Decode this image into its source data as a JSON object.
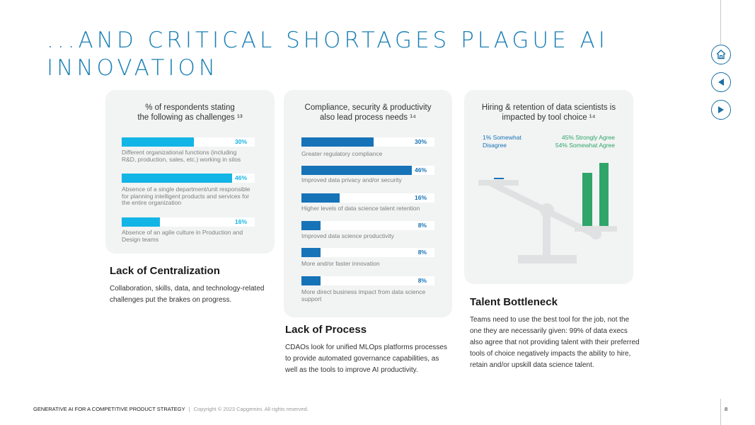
{
  "title": "...AND CRITICAL SHORTAGES PLAGUE AI INNOVATION",
  "nav": {
    "home_icon": "home-icon",
    "prev_icon": "arrow-left-icon",
    "next_icon": "arrow-right-icon",
    "accent_color": "#1b6fa3"
  },
  "card1": {
    "title_line1": "% of respondents stating",
    "title_line2": "the following as challenges ¹³",
    "bars": [
      {
        "pct": "30%",
        "value": 30,
        "label": "Different organizational functions (including R&D, production, sales, etc.) working in silos"
      },
      {
        "pct": "46%",
        "value": 46,
        "label": "Absence of a single department/unit responsible for planning intelligent products and services for the entire organization"
      },
      {
        "pct": "16%",
        "value": 16,
        "label": "Absence of an agile culture in Production and Design teams"
      }
    ],
    "color": "#12b5e5"
  },
  "card2": {
    "title_line1": "Compliance, security & productivity",
    "title_line2": "also lead process needs ¹⁴",
    "bars": [
      {
        "pct": "30%",
        "value": 30,
        "label": "Greater regulatory compliance"
      },
      {
        "pct": "46%",
        "value": 46,
        "label": "Improved data privacy and/or security"
      },
      {
        "pct": "16%",
        "value": 16,
        "label": "Higher levels of data science talent retention"
      },
      {
        "pct": "8%",
        "value": 8,
        "label": "Improved data science productivity"
      },
      {
        "pct": "8%",
        "value": 8,
        "label": "More and/or faster innovation"
      },
      {
        "pct": "8%",
        "value": 8,
        "label": "More direct business impact from data science support"
      }
    ],
    "color": "#1673b8"
  },
  "card3": {
    "title_line1": "Hiring & retention of data scientists is",
    "title_line2": "impacted by tool choice ¹⁴",
    "legend_left_line1": "1% Somewhat",
    "legend_left_line2": "Disagree",
    "legend_right_line1": "45% Strongly Agree",
    "legend_right_line2": "54% Somewhat Agree",
    "left_color": "#1673b8",
    "right_color": "#2fa56a",
    "values": {
      "somewhat_disagree": 1,
      "strongly_agree": 45,
      "somewhat_agree": 54
    }
  },
  "sections": {
    "centralization": {
      "title": "Lack of Centralization",
      "body": "Collaboration, skills, data, and technology-related challenges put the brakes on progress."
    },
    "process": {
      "title": "Lack of Process",
      "body": "CDAOs look for unified MLOps platforms processes to provide automated governance capabilities, as well as the tools to improve  AI productivity."
    },
    "talent": {
      "title": "Talent Bottleneck",
      "body": "Teams need to use the best tool for the job, not the one they are necessarily given: 99% of data execs also agree that not providing talent with their preferred tools of choice negatively impacts the ability to hire, retain and/or upskill data science talent."
    }
  },
  "footer": {
    "doc_title": "GENERATIVE AI FOR A COMPETITIVE PRODUCT STRATEGY",
    "separator": "|",
    "copyright": "Copyright © 2023 Capgemini.  All rights reserved.",
    "page": "8"
  }
}
